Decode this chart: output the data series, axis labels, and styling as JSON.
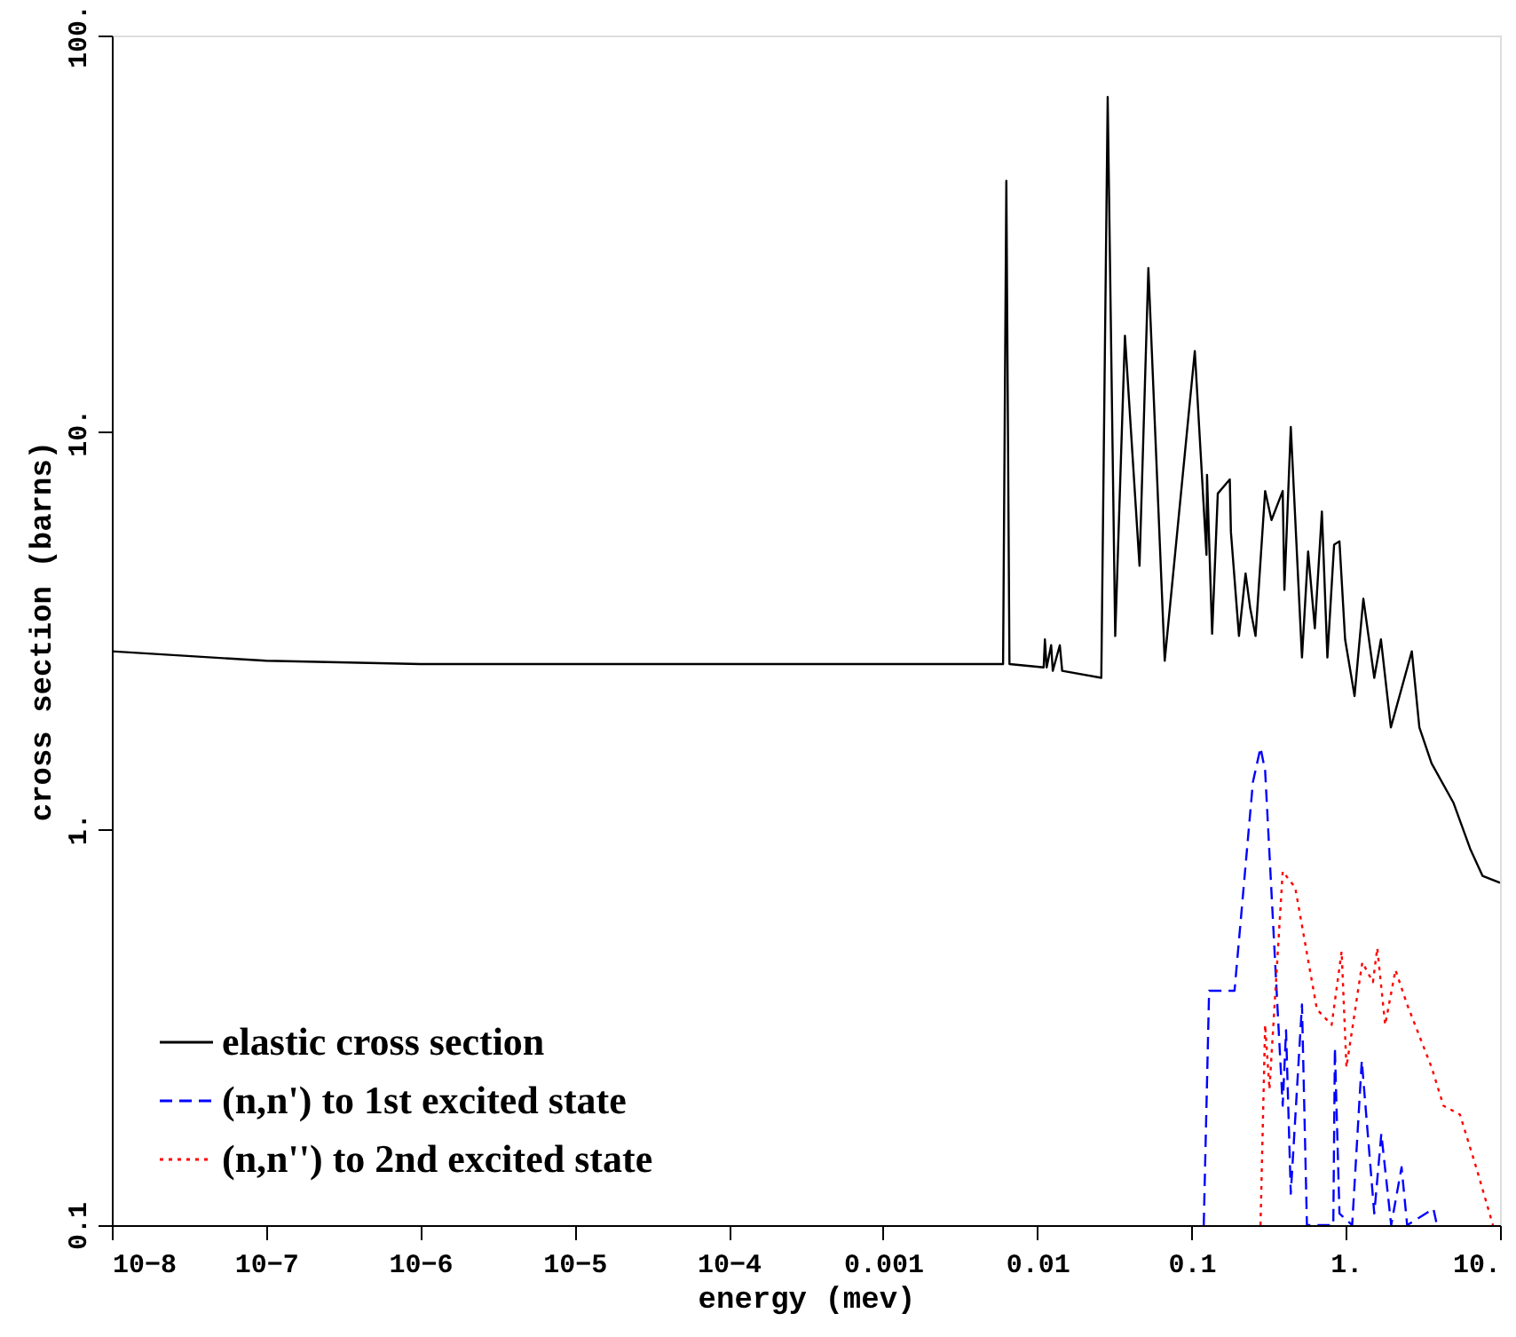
{
  "chart_data": {
    "type": "line",
    "xlabel": "energy (mev)",
    "ylabel": "cross section (barns)",
    "log": "xy",
    "xlim": [
      1e-08,
      10
    ],
    "ylim": [
      0.1,
      100
    ],
    "xticks": [
      {
        "value": 1e-08,
        "label": "10−8"
      },
      {
        "value": 1e-07,
        "label": "10−7"
      },
      {
        "value": 1e-06,
        "label": "10−6"
      },
      {
        "value": 1e-05,
        "label": "10−5"
      },
      {
        "value": 0.0001,
        "label": "10−4"
      },
      0.001,
      0.01,
      0.1,
      {
        "value": 1,
        "label": "1."
      },
      {
        "value": 10,
        "label": "10."
      }
    ],
    "yticks": [
      0.1,
      {
        "value": 1,
        "label": "1."
      },
      {
        "value": 10,
        "label": "10."
      },
      {
        "value": 100,
        "label": "100."
      }
    ],
    "grid": false,
    "legend": "bottom left",
    "marker": "none",
    "series": [
      {
        "name": "elastic cross section",
        "color": "#000000",
        "line_style": "solid",
        "x": [
          1e-08,
          1e-07,
          1e-06,
          0.001,
          0.006,
          0.0063,
          0.0066,
          0.011,
          0.0112,
          0.0115,
          0.0123,
          0.0126,
          0.014,
          0.0145,
          0.026,
          0.0286,
          0.032,
          0.037,
          0.046,
          0.0525,
          0.067,
          0.105,
          0.125,
          0.126,
          0.136,
          0.148,
          0.177,
          0.18,
          0.203,
          0.224,
          0.24,
          0.26,
          0.3,
          0.33,
          0.39,
          0.4,
          0.44,
          0.52,
          0.57,
          0.63,
          0.7,
          0.76,
          0.84,
          0.91,
          0.99,
          1.14,
          1.3,
          1.53,
          1.69,
          1.96,
          2.68,
          3.0,
          3.6,
          5.0,
          6.4,
          7.7,
          10
        ],
        "values": [
          2.8,
          2.65,
          2.6,
          2.6,
          2.6,
          43,
          2.6,
          2.55,
          3.0,
          2.55,
          2.9,
          2.5,
          2.9,
          2.5,
          2.4,
          70,
          3.06,
          17.5,
          4.6,
          25.9,
          2.65,
          16,
          4.9,
          7.8,
          3.1,
          7.0,
          7.6,
          5.6,
          3.06,
          4.4,
          3.6,
          3.06,
          7.1,
          6.0,
          7.1,
          4.0,
          10.3,
          2.7,
          5.0,
          3.2,
          6.3,
          2.7,
          5.2,
          5.3,
          3.0,
          2.16,
          3.8,
          2.4,
          3.0,
          1.8,
          2.8,
          1.8,
          1.46,
          1.16,
          0.89,
          0.76,
          0.73
        ]
      },
      {
        "name": "(n,n') to 1st excited state",
        "color": "#0000ff",
        "line_style": "dashed",
        "x": [
          0.12,
          0.13,
          0.19,
          0.25,
          0.28,
          0.3,
          0.36,
          0.39,
          0.41,
          0.44,
          0.52,
          0.56,
          0.83,
          0.85,
          0.91,
          1.1,
          1.27,
          1.53,
          1.7,
          1.97,
          2.3,
          2.5,
          3.7,
          3.9
        ],
        "values": [
          0.1,
          0.39,
          0.39,
          1.31,
          1.6,
          1.4,
          0.36,
          0.2,
          0.31,
          0.12,
          0.36,
          0.1,
          0.1,
          0.28,
          0.107,
          0.1,
          0.26,
          0.107,
          0.17,
          0.1,
          0.14,
          0.1,
          0.11,
          0.1
        ]
      },
      {
        "name": "(n,n'') to 2nd excited state",
        "color": "#ff0000",
        "line_style": "dotted",
        "x": [
          0.28,
          0.3,
          0.32,
          0.39,
          0.47,
          0.65,
          0.81,
          0.94,
          1.01,
          1.28,
          1.5,
          1.6,
          1.8,
          2.1,
          2.5,
          3.6,
          4.3,
          5.5,
          7.0,
          9.0
        ],
        "values": [
          0.1,
          0.32,
          0.22,
          0.78,
          0.71,
          0.35,
          0.32,
          0.49,
          0.25,
          0.46,
          0.41,
          0.5,
          0.32,
          0.44,
          0.36,
          0.25,
          0.2,
          0.19,
          0.14,
          0.1
        ]
      }
    ]
  }
}
